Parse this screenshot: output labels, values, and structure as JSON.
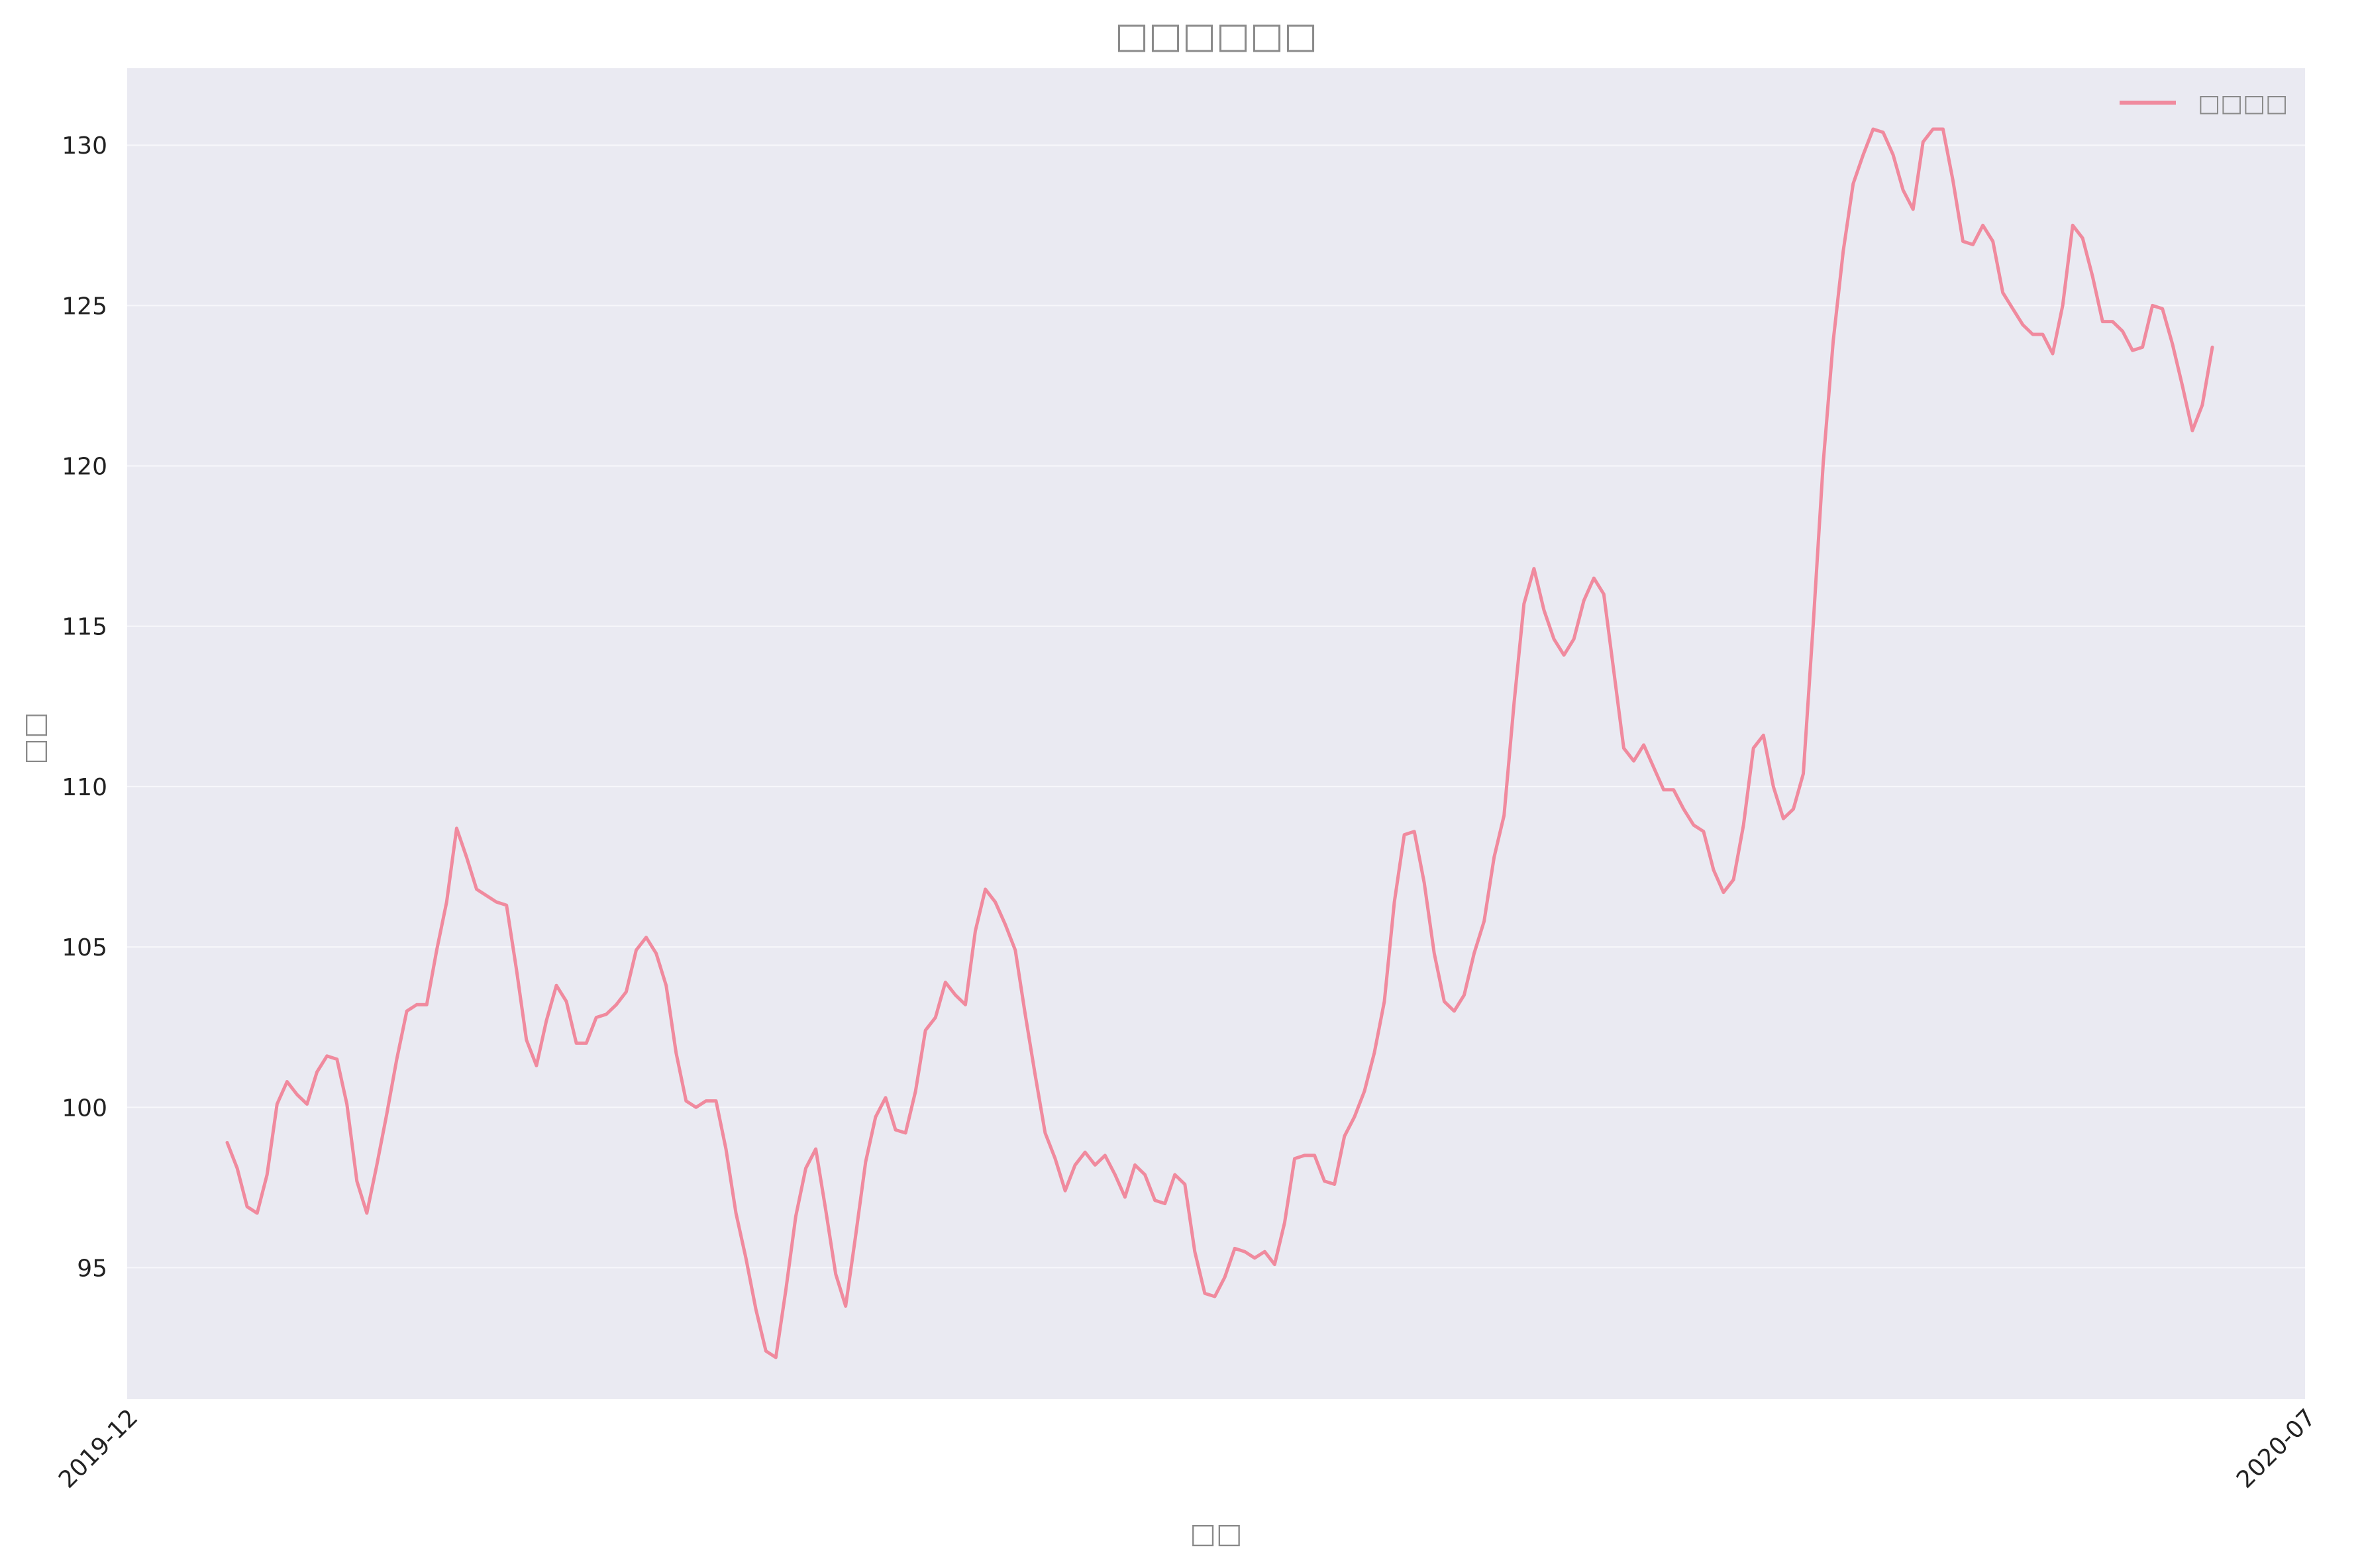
{
  "colors": {
    "plot_background": "#eaeaf2",
    "grid": "#f7f7fb",
    "line": "#f08a9e"
  },
  "chart_data": {
    "type": "line",
    "title": "□□□□□□",
    "xlabel": "□□",
    "ylabel": "□□",
    "x_tick_labels": [
      "2019-12",
      "2020-07"
    ],
    "y_ticks": [
      95,
      100,
      105,
      110,
      115,
      120,
      125,
      130
    ],
    "ylim": [
      90.9,
      132.4
    ],
    "grid": true,
    "legend_position": "top-right",
    "series": [
      {
        "name": "□□□□",
        "values": [
          98.9,
          98.1,
          96.9,
          96.7,
          97.9,
          100.1,
          100.8,
          100.4,
          100.1,
          101.1,
          101.6,
          101.5,
          100.1,
          97.7,
          96.7,
          98.2,
          99.8,
          101.5,
          103.0,
          103.2,
          103.2,
          104.9,
          106.4,
          108.7,
          107.8,
          106.8,
          106.6,
          106.4,
          106.3,
          104.3,
          102.1,
          101.3,
          102.7,
          103.8,
          103.3,
          102.0,
          102.0,
          102.8,
          102.9,
          103.2,
          103.6,
          104.9,
          105.3,
          104.8,
          103.8,
          101.7,
          100.2,
          100.0,
          100.2,
          100.2,
          98.7,
          96.7,
          95.3,
          93.7,
          92.4,
          92.2,
          94.3,
          96.6,
          98.1,
          98.7,
          96.8,
          94.8,
          93.8,
          96.0,
          98.3,
          99.7,
          100.3,
          99.3,
          99.2,
          100.5,
          102.4,
          102.8,
          103.9,
          103.5,
          103.2,
          105.5,
          106.8,
          106.4,
          105.7,
          104.9,
          102.9,
          101.0,
          99.2,
          98.4,
          97.4,
          98.2,
          98.6,
          98.2,
          98.5,
          97.9,
          97.2,
          98.2,
          97.9,
          97.1,
          97.0,
          97.9,
          97.6,
          95.5,
          94.2,
          94.1,
          94.7,
          95.6,
          95.5,
          95.3,
          95.5,
          95.1,
          96.4,
          98.4,
          98.5,
          98.5,
          97.7,
          97.6,
          99.1,
          99.7,
          100.5,
          101.7,
          103.3,
          106.4,
          108.5,
          108.6,
          107.0,
          104.8,
          103.3,
          103.0,
          103.5,
          104.8,
          105.8,
          107.8,
          109.1,
          112.6,
          115.7,
          116.8,
          115.5,
          114.6,
          114.1,
          114.6,
          115.8,
          116.5,
          116.0,
          113.6,
          111.2,
          110.8,
          111.3,
          110.6,
          109.9,
          109.9,
          109.3,
          108.8,
          108.6,
          107.4,
          106.7,
          107.1,
          108.8,
          111.2,
          111.6,
          110.0,
          109.0,
          109.3,
          110.4,
          115.1,
          120.1,
          123.9,
          126.7,
          128.8,
          129.7,
          130.5,
          130.4,
          129.7,
          128.6,
          128.0,
          130.1,
          130.5,
          130.5,
          128.9,
          127.0,
          126.9,
          127.5,
          127.0,
          125.4,
          124.9,
          124.4,
          124.1,
          124.1,
          123.5,
          125.0,
          127.5,
          127.1,
          125.9,
          124.5,
          124.5,
          124.2,
          123.6,
          123.7,
          125.0,
          124.9,
          123.8,
          122.5,
          121.1,
          121.9,
          123.7
        ]
      }
    ]
  }
}
